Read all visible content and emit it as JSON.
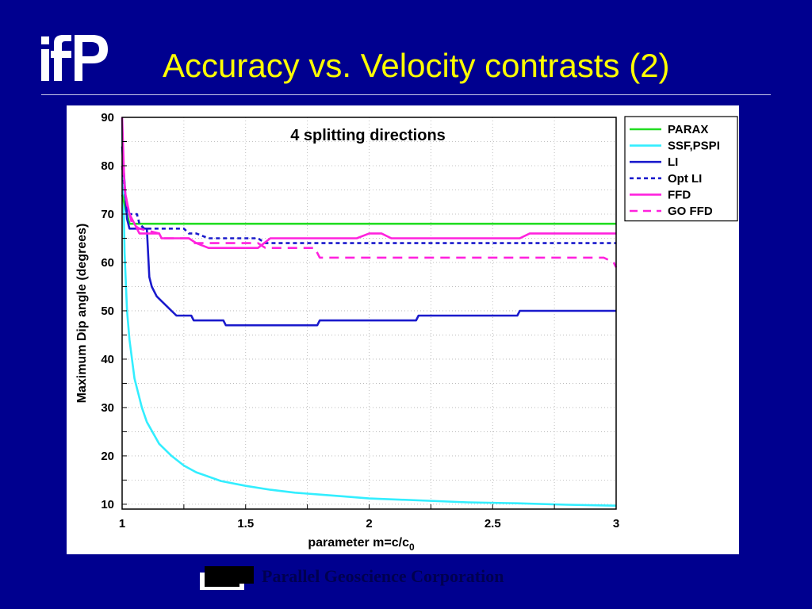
{
  "slide": {
    "title": "Accuracy vs. Velocity contrasts (2)",
    "logo_icon": "ifp-logo",
    "footer_text": "Parallel Geoscience Corporation",
    "footer_icon": "pgc-logo",
    "background_color": "#00008f",
    "title_color": "#ffff00"
  },
  "chart_data": {
    "type": "line",
    "title": "4 splitting directions",
    "xlabel_main": "parameter m=c/c",
    "xlabel_sub": "0",
    "ylabel": "Maximum Dip angle (degrees)",
    "xlim": [
      1,
      3
    ],
    "ylim": [
      9,
      90
    ],
    "xticks": [
      1,
      1.5,
      2,
      2.5,
      3
    ],
    "xtick_labels": [
      "1",
      "1.5",
      "2",
      "2.5",
      "3"
    ],
    "yticks": [
      10,
      20,
      30,
      40,
      50,
      60,
      70,
      80,
      90
    ],
    "ytick_labels": [
      "10",
      "20",
      "30",
      "40",
      "50",
      "60",
      "70",
      "80",
      "90"
    ],
    "grid": true,
    "legend_position": "outside-right-top",
    "series": [
      {
        "name": "PARAX",
        "color": "#22dd22",
        "dash": "solid",
        "points": [
          [
            1,
            74
          ],
          [
            1.03,
            68
          ],
          [
            3,
            68
          ]
        ]
      },
      {
        "name": "SSF,PSPI",
        "color": "#33eeff",
        "dash": "solid",
        "points": [
          [
            1,
            90
          ],
          [
            1.01,
            62
          ],
          [
            1.02,
            50
          ],
          [
            1.03,
            44
          ],
          [
            1.05,
            36
          ],
          [
            1.08,
            30
          ],
          [
            1.1,
            27
          ],
          [
            1.15,
            22.5
          ],
          [
            1.2,
            20
          ],
          [
            1.25,
            18
          ],
          [
            1.3,
            16.6
          ],
          [
            1.4,
            14.8
          ],
          [
            1.5,
            13.8
          ],
          [
            1.6,
            13
          ],
          [
            1.7,
            12.4
          ],
          [
            1.8,
            12
          ],
          [
            1.9,
            11.6
          ],
          [
            2,
            11.2
          ],
          [
            2.2,
            10.8
          ],
          [
            2.4,
            10.4
          ],
          [
            2.6,
            10.2
          ],
          [
            2.8,
            9.9
          ],
          [
            3,
            9.7
          ]
        ]
      },
      {
        "name": "LI",
        "color": "#1a1acc",
        "dash": "solid",
        "points": [
          [
            1,
            84
          ],
          [
            1.02,
            69
          ],
          [
            1.03,
            67
          ],
          [
            1.1,
            67
          ],
          [
            1.11,
            57
          ],
          [
            1.12,
            55
          ],
          [
            1.14,
            53
          ],
          [
            1.16,
            52
          ],
          [
            1.18,
            51
          ],
          [
            1.2,
            50
          ],
          [
            1.22,
            49
          ],
          [
            1.28,
            49
          ],
          [
            1.29,
            48
          ],
          [
            1.41,
            48
          ],
          [
            1.42,
            47
          ],
          [
            1.79,
            47
          ],
          [
            1.8,
            48
          ],
          [
            2.19,
            48
          ],
          [
            2.2,
            49
          ],
          [
            2.6,
            49
          ],
          [
            2.61,
            50
          ],
          [
            3,
            50
          ]
        ]
      },
      {
        "name": "Opt LI",
        "color": "#1a1acc",
        "dash": "dotted",
        "points": [
          [
            1,
            80
          ],
          [
            1.02,
            70
          ],
          [
            1.06,
            70
          ],
          [
            1.07,
            68
          ],
          [
            1.09,
            67
          ],
          [
            1.25,
            67
          ],
          [
            1.27,
            66
          ],
          [
            1.3,
            66
          ],
          [
            1.35,
            65
          ],
          [
            1.55,
            65
          ],
          [
            1.58,
            64
          ],
          [
            3,
            64
          ]
        ]
      },
      {
        "name": "FFD",
        "color": "#ff22dd",
        "dash": "solid",
        "points": [
          [
            1,
            90
          ],
          [
            1.01,
            75
          ],
          [
            1.03,
            70
          ],
          [
            1.05,
            68
          ],
          [
            1.07,
            66
          ],
          [
            1.15,
            66
          ],
          [
            1.16,
            65
          ],
          [
            1.27,
            65
          ],
          [
            1.3,
            64
          ],
          [
            1.35,
            63
          ],
          [
            1.55,
            63
          ],
          [
            1.6,
            65
          ],
          [
            1.95,
            65
          ],
          [
            2.0,
            66
          ],
          [
            2.05,
            66
          ],
          [
            2.09,
            65
          ],
          [
            2.61,
            65
          ],
          [
            2.65,
            66
          ],
          [
            3,
            66
          ]
        ]
      },
      {
        "name": "GO FFD",
        "color": "#ff22dd",
        "dash": "dashed",
        "points": [
          [
            1,
            80
          ],
          [
            1.02,
            72
          ],
          [
            1.04,
            68
          ],
          [
            1.07,
            67
          ],
          [
            1.15,
            66
          ],
          [
            1.17,
            65
          ],
          [
            1.27,
            65
          ],
          [
            1.29,
            64
          ],
          [
            1.55,
            64
          ],
          [
            1.58,
            63
          ],
          [
            1.78,
            63
          ],
          [
            1.8,
            61
          ],
          [
            2.88,
            61
          ],
          [
            2.95,
            61
          ],
          [
            2.99,
            60
          ],
          [
            3,
            59
          ]
        ]
      }
    ]
  }
}
